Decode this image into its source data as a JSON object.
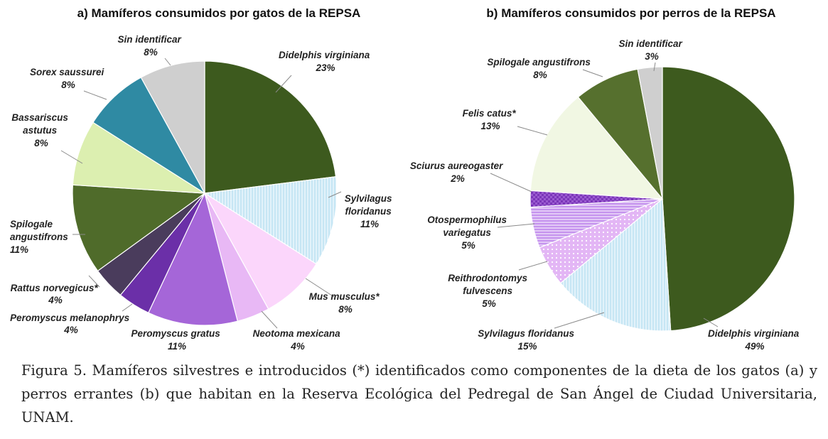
{
  "chart_data": [
    {
      "type": "pie",
      "title": "a) Mamíferos consumidos por gatos de la REPSA",
      "slices": [
        {
          "label": "Didelphis virginiana",
          "value": 23,
          "display": "23%",
          "color": "#3d5a1e",
          "pattern": "solid"
        },
        {
          "label": "Sylvilagus floridanus",
          "value": 11,
          "display": "11%",
          "color": "#c6e6f4",
          "pattern": "vlines"
        },
        {
          "label": "Mus musculus*",
          "value": 8,
          "display": "8%",
          "color": "#fbd6fb",
          "pattern": "solid"
        },
        {
          "label": "Neotoma mexicana",
          "value": 4,
          "display": "4%",
          "color": "#e8b8f5",
          "pattern": "solid"
        },
        {
          "label": "Peromyscus gratus",
          "value": 11,
          "display": "11%",
          "color": "#a566d8",
          "pattern": "solid"
        },
        {
          "label": "Peromyscus melanophrys",
          "value": 4,
          "display": "4%",
          "color": "#6b2fa8",
          "pattern": "solid"
        },
        {
          "label": "Rattus norvegicus*",
          "value": 4,
          "display": "4%",
          "color": "#4a3c5c",
          "pattern": "solid"
        },
        {
          "label": "Spilogale angustifrons",
          "value": 11,
          "display": "11%",
          "color": "#4f6b2a",
          "pattern": "solid"
        },
        {
          "label": "Bassariscus astutus",
          "value": 8,
          "display": "8%",
          "color": "#dcefb0",
          "pattern": "solid"
        },
        {
          "label": "Sorex saussurei",
          "value": 8,
          "display": "8%",
          "color": "#2f8aa3",
          "pattern": "solid"
        },
        {
          "label": "Sin identificar",
          "value": 8,
          "display": "8%",
          "color": "#cfcfcf",
          "pattern": "solid"
        }
      ]
    },
    {
      "type": "pie",
      "title": "b) Mamíferos consumidos por perros de la REPSA",
      "slices": [
        {
          "label": "Didelphis virginiana",
          "value": 49,
          "display": "49%",
          "color": "#3d5a1e",
          "pattern": "solid"
        },
        {
          "label": "Sylvilagus floridanus",
          "value": 15,
          "display": "15%",
          "color": "#c6e6f4",
          "pattern": "vlines"
        },
        {
          "label": "Reithrodontomys fulvescens",
          "value": 5,
          "display": "5%",
          "color": "#e3b6f5",
          "pattern": "dots"
        },
        {
          "label": "Otospermophilus variegatus",
          "value": 5,
          "display": "5%",
          "color": "#c593ee",
          "pattern": "hlines"
        },
        {
          "label": "Sciurus aureogaster",
          "value": 2,
          "display": "2%",
          "color": "#7a35b8",
          "pattern": "checks"
        },
        {
          "label": "Felis catus*",
          "value": 13,
          "display": "13%",
          "color": "#f1f7e3",
          "pattern": "solid"
        },
        {
          "label": "Spilogale angustifrons",
          "value": 8,
          "display": "8%",
          "color": "#56702e",
          "pattern": "solid"
        },
        {
          "label": "Sin identificar",
          "value": 3,
          "display": "3%",
          "color": "#cfcfcf",
          "pattern": "solid"
        }
      ]
    }
  ],
  "caption": "Figura 5. Mamíferos silvestres e introducidos (*) identificados como componentes de la dieta de los gatos (a) y perros errantes (b) que habitan en la Reserva Ecológica del Pedregal de San Ángel de Ciudad Universitaria, UNAM."
}
